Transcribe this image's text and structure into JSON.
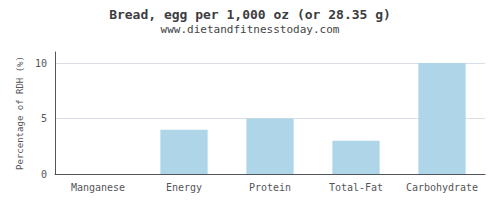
{
  "chart_data": {
    "type": "bar",
    "title": "Bread, egg per 1,000 oz (or 28.35 g)",
    "subtitle": "www.dietandfitnesstoday.com",
    "categories": [
      "Manganese",
      "Energy",
      "Protein",
      "Total-Fat",
      "Carbohydrate"
    ],
    "values": [
      0,
      4.0,
      5.0,
      3.0,
      10.0
    ],
    "color": "#aed6e8",
    "ylabel": "Percentage of RDH (%)",
    "ylim": [
      0,
      11
    ],
    "yticks": [
      0,
      5,
      10
    ],
    "grid": true
  }
}
